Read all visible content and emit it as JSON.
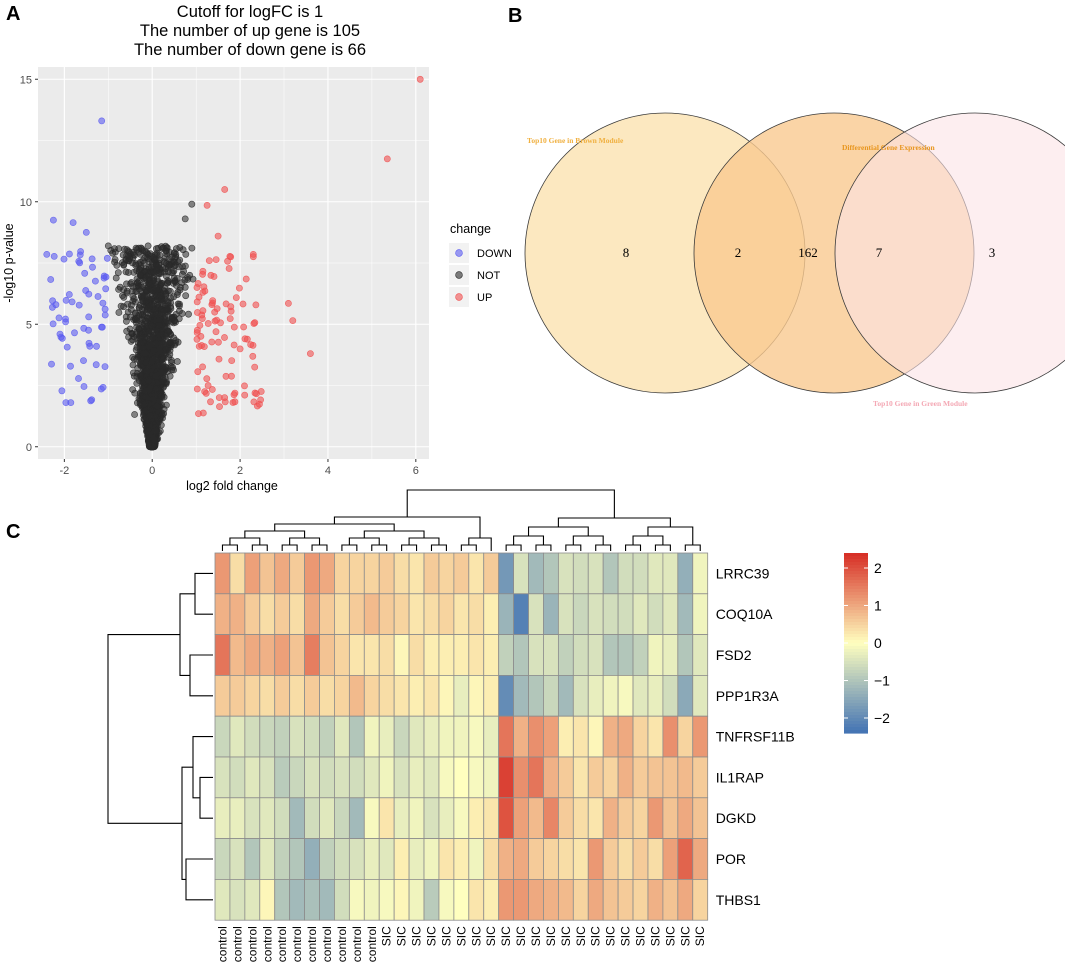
{
  "panels": {
    "a": "A",
    "b": "B",
    "c": "C"
  },
  "chart_data": [
    {
      "type": "scatter",
      "title_lines": [
        "Cutoff for logFC is 1",
        "The number of up gene is 105",
        "The number of down gene is 66"
      ],
      "xlabel": "log2 fold change",
      "ylabel": "-log10 p-value",
      "xlim": [
        -2.6,
        6.3
      ],
      "ylim": [
        -0.5,
        15.5
      ],
      "xticks": [
        -2,
        0,
        2,
        4,
        6
      ],
      "yticks": [
        0,
        5,
        10,
        15
      ],
      "grid": true,
      "legend": {
        "title": "change",
        "position": "right",
        "entries": [
          "DOWN",
          "NOT",
          "UP"
        ]
      },
      "colors": {
        "DOWN": "#5b5bf0",
        "NOT": "#2a2a2a",
        "UP": "#f05050",
        "panel_bg": "#ebebeb",
        "grid": "#ffffff"
      },
      "counts": {
        "up": 105,
        "down": 66
      },
      "cutoff_logfc": 1,
      "highlight_points": {
        "UP": [
          [
            6.1,
            15.0
          ],
          [
            5.35,
            11.75
          ],
          [
            1.65,
            10.5
          ],
          [
            1.25,
            9.85
          ],
          [
            2.3,
            7.85
          ],
          [
            3.6,
            3.8
          ],
          [
            3.2,
            5.15
          ],
          [
            3.1,
            5.85
          ],
          [
            1.5,
            8.6
          ],
          [
            1.3,
            7.6
          ]
        ],
        "DOWN": [
          [
            -1.15,
            13.3
          ],
          [
            -2.25,
            9.25
          ],
          [
            -1.8,
            9.15
          ],
          [
            -1.5,
            8.75
          ],
          [
            -2.4,
            7.85
          ],
          [
            -2.1,
            4.6
          ]
        ],
        "NOT": [
          [
            0.75,
            9.3
          ],
          [
            0.9,
            9.9
          ],
          [
            -1.0,
            8.2
          ],
          [
            -0.9,
            7.9
          ]
        ]
      }
    },
    {
      "type": "venn",
      "sets": [
        {
          "name": "Top10 Gene in Brown Module",
          "color": "#fbe2b0"
        },
        {
          "name": "Differential Gene Expression",
          "color": "#f9c990"
        },
        {
          "name": "Top10 Gene in Green Module",
          "color": "#fce3e6"
        }
      ],
      "regions": {
        "brown_only": 8,
        "brown_and_deg": 2,
        "deg_only": 162,
        "deg_and_green": 7,
        "green_only": 3
      }
    },
    {
      "type": "heatmap",
      "rows": [
        "LRRC39",
        "COQ10A",
        "FSD2",
        "PPP1R3A",
        "TNFRSF11B",
        "IL1RAP",
        "DGKD",
        "POR",
        "THBS1"
      ],
      "columns": [
        "control",
        "control",
        "control",
        "control",
        "control",
        "control",
        "control",
        "control",
        "control",
        "control",
        "control",
        "SIC",
        "SIC",
        "SIC",
        "SIC",
        "SIC",
        "SIC",
        "SIC",
        "SIC",
        "SIC",
        "SIC",
        "SIC",
        "SIC",
        "SIC",
        "SIC",
        "SIC",
        "SIC",
        "SIC",
        "SIC",
        "SIC",
        "SIC",
        "SIC",
        "SIC"
      ],
      "color_scale": {
        "min": -2.4,
        "max": 2.4,
        "ticks": [
          2,
          1,
          0,
          -1,
          -2
        ],
        "tick_labels": [
          "2",
          "1",
          "0",
          "−1",
          "−2"
        ],
        "low": "#4575b4",
        "mid": "#ffffbf",
        "high": "#d73027"
      },
      "values": [
        [
          1.2,
          0.4,
          1.1,
          0.7,
          1.0,
          0.6,
          1.2,
          1.0,
          0.5,
          0.5,
          0.5,
          0.6,
          0.4,
          0.3,
          0.6,
          0.5,
          0.6,
          0.3,
          0.6,
          -1.8,
          -0.5,
          -1.2,
          -1.0,
          -0.5,
          -0.6,
          -0.5,
          -1.0,
          -0.6,
          -0.6,
          -0.4,
          -0.4,
          -1.4,
          -0.2
        ],
        [
          0.9,
          0.9,
          0.6,
          0.4,
          0.6,
          0.4,
          1.0,
          0.6,
          0.4,
          0.6,
          0.8,
          0.6,
          0.5,
          0.3,
          0.4,
          0.5,
          0.3,
          0.4,
          0.2,
          -1.3,
          -2.2,
          -0.5,
          -1.3,
          -0.5,
          -0.7,
          -0.5,
          -0.6,
          -0.6,
          -0.4,
          -0.6,
          -0.4,
          -1.2,
          -0.2
        ],
        [
          1.6,
          0.8,
          1.0,
          0.9,
          1.1,
          0.7,
          1.5,
          0.7,
          0.5,
          0.3,
          0.3,
          0.4,
          0.1,
          0.4,
          0.2,
          0.2,
          0.2,
          0.3,
          0.2,
          -0.8,
          -1.0,
          -0.5,
          -0.5,
          -0.8,
          -0.6,
          -0.5,
          -1.0,
          -1.0,
          -0.8,
          -0.2,
          -0.3,
          -1.0,
          -0.4
        ],
        [
          0.6,
          0.6,
          0.5,
          0.4,
          0.6,
          0.4,
          0.6,
          0.4,
          0.5,
          0.8,
          0.5,
          0.4,
          0.3,
          0.2,
          0.3,
          0.1,
          -0.3,
          0.1,
          0.2,
          -2.0,
          -1.2,
          -1.0,
          -0.7,
          -1.2,
          -0.5,
          -0.3,
          -0.2,
          -0.1,
          -0.4,
          -0.3,
          -0.6,
          -1.5,
          -0.4
        ],
        [
          -0.7,
          -0.4,
          -0.6,
          -0.7,
          -0.8,
          -0.5,
          -0.6,
          -0.8,
          -0.4,
          -1.0,
          -0.2,
          -0.3,
          -0.7,
          -0.4,
          -0.3,
          -0.2,
          -0.2,
          -0.1,
          -0.3,
          1.6,
          0.9,
          1.3,
          1.1,
          0.2,
          0.3,
          0.1,
          0.9,
          1.0,
          0.5,
          0.3,
          1.3,
          0.5,
          1.2
        ],
        [
          -0.5,
          -0.6,
          -0.4,
          -0.5,
          -0.9,
          -0.7,
          -0.5,
          -0.6,
          -0.5,
          -0.6,
          -0.4,
          -0.2,
          -0.5,
          -0.3,
          -0.4,
          -0.1,
          0.0,
          -0.1,
          -0.2,
          2.2,
          1.3,
          1.6,
          0.9,
          0.6,
          0.3,
          0.6,
          0.5,
          0.9,
          0.6,
          0.7,
          0.7,
          0.8,
          0.6
        ],
        [
          -0.3,
          -0.3,
          -0.5,
          -0.4,
          -0.6,
          -1.2,
          -0.6,
          -0.4,
          -0.7,
          -1.2,
          -0.1,
          0.3,
          -0.3,
          -0.2,
          -0.5,
          -0.3,
          -0.1,
          0.2,
          0.3,
          2.0,
          1.1,
          0.8,
          1.4,
          0.6,
          0.4,
          0.3,
          0.9,
          0.6,
          0.5,
          1.2,
          0.7,
          1.0,
          0.7
        ],
        [
          -0.7,
          -0.5,
          -1.0,
          -0.4,
          -0.8,
          -1.0,
          -1.4,
          -0.8,
          -0.6,
          -0.5,
          -0.3,
          -0.4,
          0.2,
          -0.3,
          -0.2,
          0.3,
          0.2,
          -0.2,
          0.4,
          0.9,
          1.0,
          0.6,
          0.5,
          0.4,
          0.3,
          1.2,
          0.6,
          0.4,
          0.6,
          0.4,
          1.1,
          1.8,
          1.0
        ],
        [
          -0.4,
          -0.5,
          -0.4,
          0.1,
          -1.0,
          -1.2,
          -1.1,
          -1.2,
          -0.6,
          -0.1,
          -0.2,
          -0.1,
          0.1,
          -0.2,
          -0.9,
          -0.1,
          0.0,
          0.3,
          0.2,
          1.2,
          1.2,
          1.0,
          0.9,
          0.8,
          0.5,
          1.0,
          0.7,
          0.6,
          0.5,
          0.9,
          0.7,
          1.0,
          0.5
        ]
      ]
    }
  ]
}
